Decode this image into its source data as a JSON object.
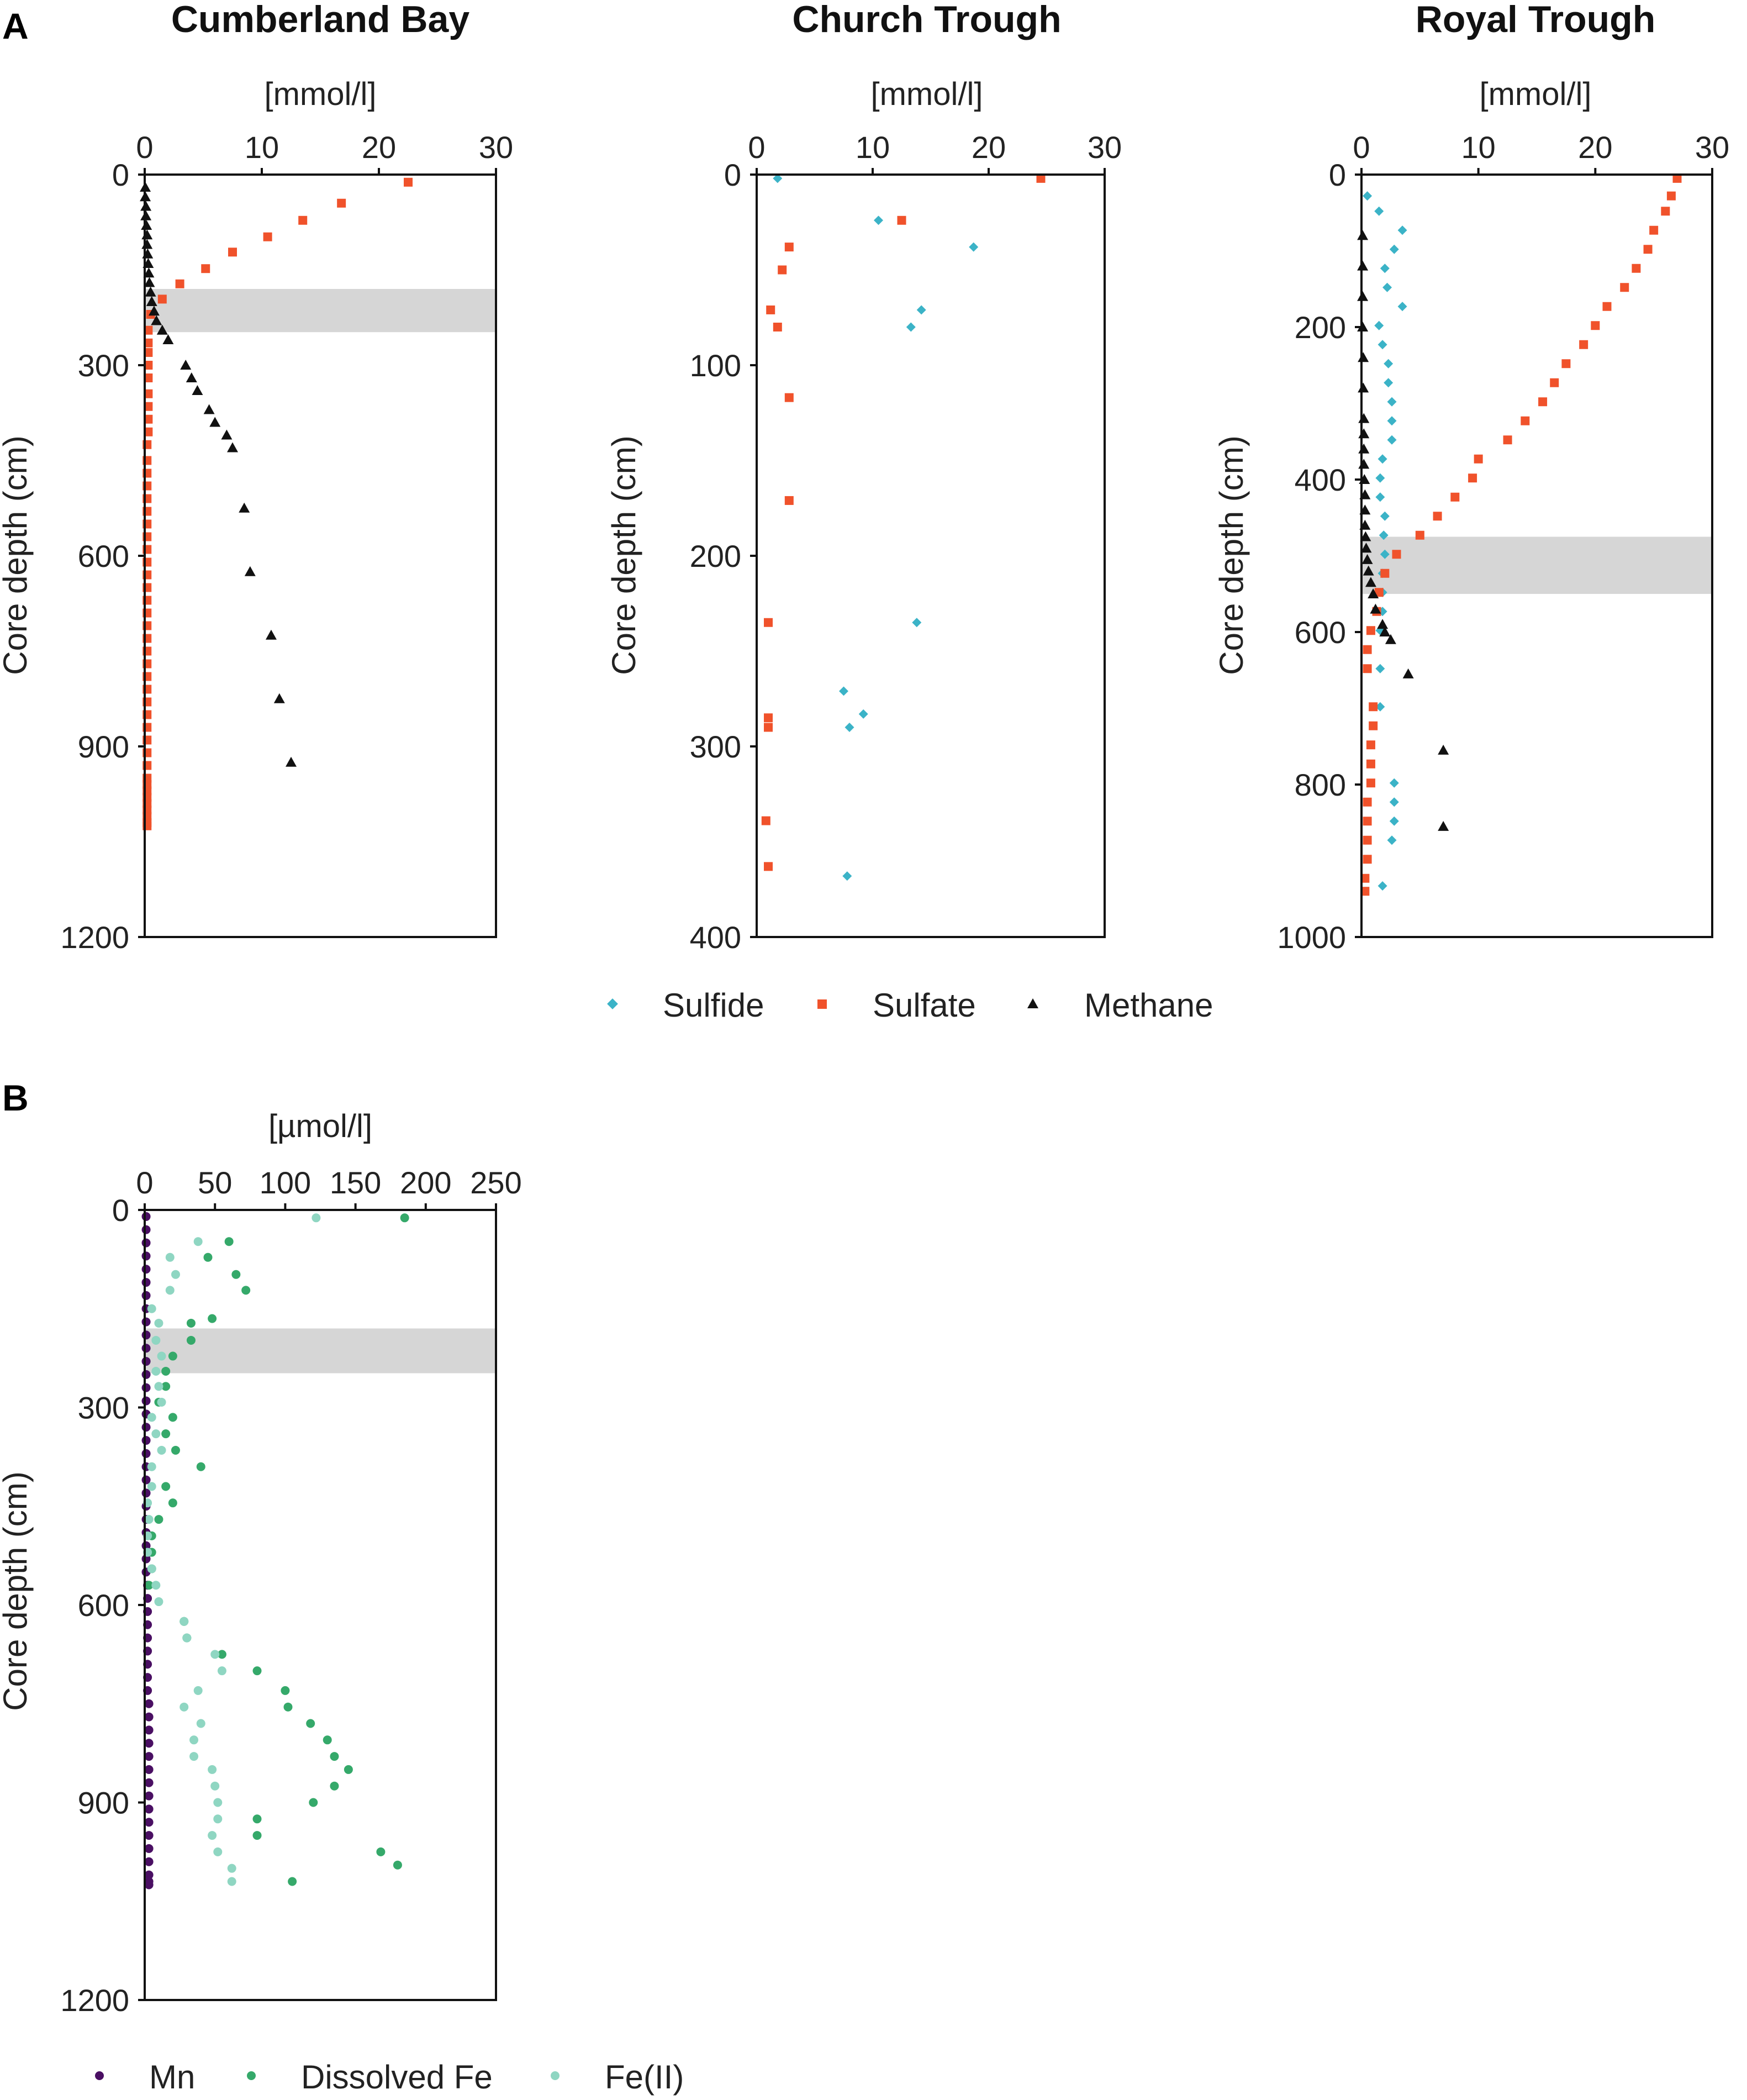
{
  "figure": {
    "panel_a_label": "A",
    "panel_b_label": "B",
    "legend_a": [
      {
        "label": "Sulfide",
        "marker": "diamond",
        "color": "#3bb3c7"
      },
      {
        "label": "Sulfate",
        "marker": "square",
        "color": "#f0522b"
      },
      {
        "label": "Methane",
        "marker": "triangle",
        "color": "#111111"
      }
    ],
    "legend_b": [
      {
        "label": "Mn",
        "marker": "circle",
        "color": "#4a0f63"
      },
      {
        "label": "Dissolved Fe",
        "marker": "circle",
        "color": "#35a96a"
      },
      {
        "label": "Fe(II)",
        "marker": "circle",
        "color": "#8fd6c2"
      }
    ]
  },
  "chart_data": [
    {
      "id": "cumberland",
      "type": "scatter",
      "title": "Cumberland Bay",
      "xlabel": "[mmol/l]",
      "ylabel": "Core depth (cm)",
      "xlim": [
        0,
        30
      ],
      "ylim": [
        0,
        1200
      ],
      "xticks": [
        0,
        10,
        20,
        30
      ],
      "yticks": [
        0,
        300,
        600,
        900,
        1200
      ],
      "smtz": [
        180,
        248
      ],
      "series": [
        {
          "name": "Sulfate",
          "marker": "square",
          "color": "#f0522b",
          "x": [
            22.5,
            16.8,
            13.5,
            10.5,
            7.5,
            5.2,
            3.0,
            1.5,
            0.5,
            0.3,
            0.3,
            0.3,
            0.3,
            0.3,
            0.3,
            0.3,
            0.3,
            0.3,
            0.2,
            0.2,
            0.2,
            0.2,
            0.2,
            0.2,
            0.2,
            0.2,
            0.2,
            0.2,
            0.2,
            0.2,
            0.2,
            0.2,
            0.2,
            0.2,
            0.2,
            0.2,
            0.2,
            0.2,
            0.2,
            0.2,
            0.2,
            0.2,
            0.2,
            0.2,
            0.2,
            0.2,
            0.2,
            0.2,
            0.2,
            0.2,
            0.2,
            0.2,
            0.2
          ],
          "y": [
            12,
            45,
            72,
            98,
            122,
            148,
            172,
            196,
            220,
            245,
            265,
            280,
            300,
            320,
            345,
            365,
            385,
            405,
            425,
            450,
            470,
            490,
            510,
            530,
            550,
            570,
            590,
            610,
            630,
            650,
            670,
            690,
            710,
            730,
            750,
            770,
            790,
            810,
            830,
            850,
            870,
            890,
            910,
            930,
            950,
            960,
            970,
            980,
            990,
            1000,
            1010,
            1020,
            1025
          ]
        },
        {
          "name": "Methane",
          "marker": "triangle",
          "color": "#111111",
          "x": [
            0.05,
            0.05,
            0.1,
            0.1,
            0.15,
            0.2,
            0.2,
            0.25,
            0.3,
            0.35,
            0.4,
            0.5,
            0.6,
            0.8,
            1.0,
            1.5,
            2.0,
            3.5,
            4.0,
            4.5,
            5.5,
            6.0,
            7.0,
            7.5,
            8.5,
            9.0,
            10.8,
            11.5,
            12.5
          ],
          "y": [
            20,
            35,
            50,
            65,
            80,
            95,
            110,
            125,
            140,
            155,
            170,
            185,
            200,
            215,
            230,
            245,
            260,
            300,
            320,
            340,
            370,
            390,
            410,
            430,
            525,
            625,
            725,
            825,
            925
          ]
        }
      ]
    },
    {
      "id": "church",
      "type": "scatter",
      "title": "Church Trough",
      "xlabel": "[mmol/l]",
      "ylabel": "Core depth (cm)",
      "xlim": [
        0,
        30
      ],
      "ylim": [
        0,
        400
      ],
      "xticks": [
        0,
        10,
        20,
        30
      ],
      "yticks": [
        0,
        100,
        200,
        300,
        400
      ],
      "smtz": null,
      "series": [
        {
          "name": "Sulfide",
          "marker": "diamond",
          "color": "#3bb3c7",
          "x": [
            1.8,
            10.5,
            18.7,
            14.2,
            13.3,
            13.8,
            7.5,
            9.2,
            8.0,
            7.8
          ],
          "y": [
            2,
            24,
            38,
            71,
            80,
            235,
            271,
            283,
            290,
            368
          ]
        },
        {
          "name": "Sulfate",
          "marker": "square",
          "color": "#f0522b",
          "x": [
            24.5,
            12.5,
            2.8,
            2.2,
            1.2,
            1.8,
            2.8,
            2.8,
            1.0,
            1.0,
            1.0,
            0.8,
            1.0
          ],
          "y": [
            2,
            24,
            38,
            50,
            71,
            80,
            117,
            171,
            235,
            285,
            290,
            339,
            363
          ]
        }
      ]
    },
    {
      "id": "royal",
      "type": "scatter",
      "title": "Royal Trough",
      "xlabel": "[mmol/l]",
      "ylabel": "Core depth (cm)",
      "xlim": [
        0,
        30
      ],
      "ylim": [
        0,
        1000
      ],
      "xticks": [
        0,
        10,
        20,
        30
      ],
      "yticks": [
        0,
        200,
        400,
        600,
        800,
        1000
      ],
      "smtz": [
        475,
        550
      ],
      "series": [
        {
          "name": "Sulfide",
          "marker": "diamond",
          "color": "#3bb3c7",
          "x": [
            0.5,
            1.5,
            3.5,
            2.8,
            2.0,
            2.2,
            3.5,
            1.5,
            1.8,
            2.3,
            2.3,
            2.6,
            2.6,
            2.6,
            1.8,
            1.6,
            1.6,
            2.0,
            1.9,
            2.0,
            1.8,
            1.8,
            1.8,
            1.6,
            1.6,
            1.6,
            2.8,
            2.8,
            2.8,
            2.6,
            1.8
          ],
          "y": [
            28,
            48,
            73,
            98,
            123,
            148,
            173,
            198,
            223,
            248,
            273,
            298,
            323,
            348,
            373,
            398,
            423,
            448,
            473,
            498,
            523,
            548,
            573,
            598,
            648,
            698,
            798,
            823,
            848,
            873,
            933
          ]
        },
        {
          "name": "Sulfate",
          "marker": "square",
          "color": "#f0522b",
          "x": [
            27.0,
            26.5,
            26.0,
            25.0,
            24.5,
            23.5,
            22.5,
            21.0,
            20.0,
            19.0,
            17.5,
            16.5,
            15.5,
            14.0,
            12.5,
            10.0,
            9.5,
            8.0,
            6.5,
            5.0,
            3.0,
            2.0,
            1.5,
            1.3,
            0.8,
            0.5,
            0.5,
            1.0,
            1.0,
            0.8,
            0.8,
            0.8,
            0.5,
            0.5,
            0.5,
            0.5,
            0.3,
            0.3
          ],
          "y": [
            5,
            28,
            48,
            73,
            98,
            123,
            148,
            173,
            198,
            223,
            248,
            273,
            298,
            323,
            348,
            373,
            398,
            423,
            448,
            473,
            498,
            523,
            548,
            573,
            598,
            623,
            648,
            698,
            723,
            748,
            773,
            798,
            823,
            848,
            873,
            898,
            923,
            940
          ]
        },
        {
          "name": "Methane",
          "marker": "triangle",
          "color": "#111111",
          "x": [
            0.1,
            0.1,
            0.1,
            0.1,
            0.15,
            0.15,
            0.2,
            0.2,
            0.2,
            0.2,
            0.25,
            0.3,
            0.3,
            0.3,
            0.35,
            0.4,
            0.5,
            0.6,
            0.8,
            1.0,
            1.2,
            1.8,
            2.0,
            2.5,
            4.0,
            7.0,
            7.0
          ],
          "y": [
            80,
            120,
            160,
            200,
            240,
            280,
            320,
            340,
            360,
            380,
            400,
            420,
            440,
            460,
            475,
            490,
            505,
            520,
            535,
            550,
            570,
            590,
            600,
            610,
            655,
            755,
            855
          ]
        }
      ]
    },
    {
      "id": "cumberland_metals",
      "type": "scatter",
      "title": "",
      "xlabel": "[µmol/l]",
      "ylabel": "Core depth (cm)",
      "xlim": [
        0,
        250
      ],
      "ylim": [
        0,
        1200
      ],
      "xticks": [
        0,
        50,
        100,
        150,
        200,
        250
      ],
      "yticks": [
        0,
        300,
        600,
        900,
        1200
      ],
      "smtz": [
        180,
        248
      ],
      "series": [
        {
          "name": "Mn",
          "marker": "circle",
          "color": "#4a0f63",
          "x": [
            1,
            1,
            1,
            1,
            1,
            1,
            1,
            1,
            1,
            1,
            1,
            1,
            1,
            1,
            1,
            1,
            1,
            1,
            1,
            1,
            1,
            1,
            1,
            1,
            1,
            1,
            1,
            1,
            2,
            2,
            2,
            2,
            2,
            2,
            2,
            2,
            2,
            3,
            3,
            3,
            3,
            3,
            3,
            3,
            3,
            3,
            3,
            3,
            3,
            3,
            3,
            3,
            3
          ],
          "y": [
            10,
            30,
            50,
            70,
            90,
            110,
            130,
            150,
            170,
            190,
            210,
            230,
            250,
            270,
            290,
            310,
            330,
            350,
            370,
            390,
            410,
            430,
            450,
            470,
            490,
            510,
            530,
            550,
            570,
            590,
            610,
            630,
            650,
            670,
            690,
            710,
            730,
            750,
            770,
            790,
            810,
            830,
            850,
            870,
            890,
            910,
            930,
            950,
            970,
            990,
            1010,
            1020,
            1025
          ]
        },
        {
          "name": "Dissolved Fe",
          "marker": "circle",
          "color": "#35a96a",
          "x": [
            185,
            60,
            45,
            65,
            72,
            48,
            33,
            33,
            20,
            15,
            15,
            10,
            20,
            15,
            22,
            40,
            15,
            20,
            10,
            5,
            5,
            5,
            3,
            28,
            30,
            55,
            80,
            100,
            102,
            118,
            130,
            135,
            145,
            135,
            120,
            80,
            80,
            168,
            180,
            105
          ],
          "y": [
            12,
            48,
            72,
            98,
            122,
            165,
            172,
            198,
            222,
            245,
            268,
            292,
            315,
            340,
            365,
            390,
            420,
            445,
            470,
            495,
            520,
            545,
            570,
            625,
            650,
            675,
            700,
            730,
            755,
            780,
            805,
            830,
            850,
            875,
            900,
            925,
            950,
            975,
            995,
            1020
          ]
        },
        {
          "name": "Fe(II)",
          "marker": "circle",
          "color": "#8fd6c2",
          "x": [
            122,
            38,
            18,
            22,
            18,
            5,
            10,
            8,
            12,
            8,
            10,
            12,
            5,
            8,
            12,
            5,
            5,
            2,
            3,
            2,
            2,
            5,
            8,
            10,
            28,
            30,
            50,
            55,
            38,
            28,
            40,
            35,
            35,
            48,
            50,
            52,
            52,
            48,
            52,
            62,
            62
          ],
          "y": [
            12,
            48,
            72,
            98,
            122,
            150,
            172,
            198,
            222,
            245,
            268,
            292,
            315,
            340,
            365,
            390,
            420,
            445,
            470,
            495,
            520,
            545,
            570,
            595,
            625,
            650,
            675,
            700,
            730,
            755,
            780,
            805,
            830,
            850,
            875,
            900,
            925,
            950,
            975,
            1000,
            1020
          ]
        }
      ]
    }
  ]
}
